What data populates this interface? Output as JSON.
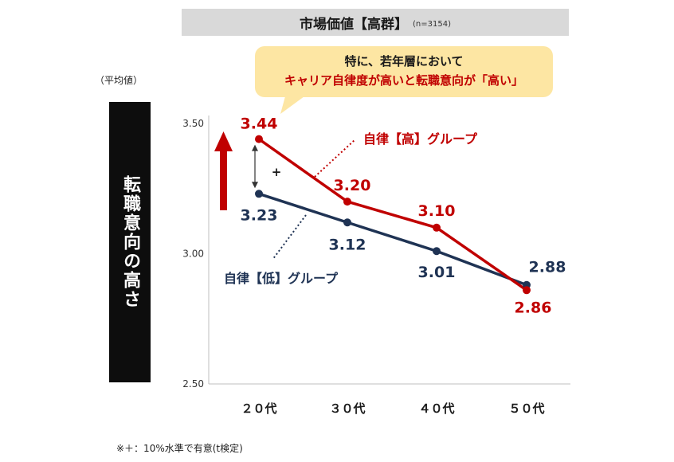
{
  "header": {
    "title": "市場価値【高群】",
    "sample": "(n=3154)"
  },
  "callout": {
    "line1": "特に、若年層において",
    "line2": "キャリア自律度が高いと転職意向が「高い」"
  },
  "y_unit": "（平均値）",
  "y_axis_title": "転職意向の高さ",
  "footnote": "※＋：10%水準で有意(t検定)",
  "significance_mark": "+",
  "colors": {
    "high": "#c00000",
    "low": "#1f3354"
  },
  "chart_data": {
    "type": "line",
    "categories": [
      "２０代",
      "３０代",
      "４０代",
      "５０代"
    ],
    "ylim": [
      2.5,
      3.5
    ],
    "yticks": [
      "3.50",
      "3.00",
      "2.50"
    ],
    "series": [
      {
        "name": "自律【高】グループ",
        "values": [
          3.44,
          3.2,
          3.1,
          2.86
        ],
        "labels": [
          "3.44",
          "3.20",
          "3.10",
          "2.86"
        ]
      },
      {
        "name": "自律【低】グループ",
        "values": [
          3.23,
          3.12,
          3.01,
          2.88
        ],
        "labels": [
          "3.23",
          "3.12",
          "3.01",
          "2.88"
        ]
      }
    ]
  }
}
